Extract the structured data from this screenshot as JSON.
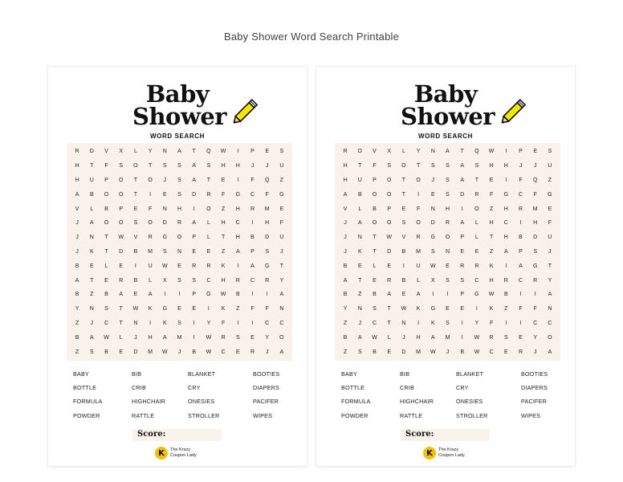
{
  "page": {
    "title": "Baby Shower Word Search Printable"
  },
  "sheet": {
    "title": [
      "Baby",
      "Shower"
    ],
    "subtitle": "WORD SEARCH",
    "pencil_icon": "pencil-icon",
    "grid": [
      "RDVXLYNATQWIPES",
      "HTFSOTSSASHHJJU",
      "HUPOTOJSATEIFQZ",
      "ABOOTIESDRFGCFG",
      "VLBPEFNHIOZHRME",
      "JAOOSODRALHCIHF",
      "JNTWVRGOPLTHBDU",
      "JKTDBMSNEEZAPSJ",
      "BELEIUWERRKIAGT",
      "ATERBLXSSCHRCRY",
      "BZBAEAIIPGWBIIA",
      "YNSTWKGEEIKZFFN",
      "ZJCTNIKSIYFIICC",
      "BAWLJHAMIWRSEYO",
      "ZSBEDMWJBWCERJA"
    ],
    "words": [
      "BABY",
      "BIB",
      "BLANKET",
      "BOOTIES",
      "BOTTLE",
      "CRIB",
      "CRY",
      "DIAPERS",
      "FORMULA",
      "HIGHCHAIR",
      "ONESIES",
      "PACIFER",
      "POWDER",
      "RATTLE",
      "STROLLER",
      "WIPES"
    ],
    "score_label": "Score:",
    "logo": {
      "mark": "K",
      "line1": "The Krazy",
      "line2": "Coupon Lady",
      "accent": "#f2c200"
    }
  },
  "colors": {
    "grid_bg": "#f9f2ea",
    "pencil": "#f7e600"
  }
}
